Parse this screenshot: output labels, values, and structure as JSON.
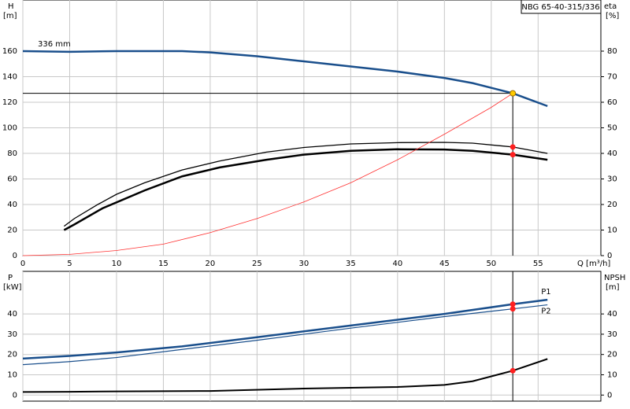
{
  "chart_data": [
    {
      "type": "line",
      "title": "NBG 65-40-315/336",
      "ylabel": "H",
      "yunit": "[m]",
      "y2label": "eta",
      "y2unit": "[%]",
      "xlabel": "Q [m³/h]",
      "xlim": [
        0,
        61.7
      ],
      "xticks": [
        0,
        5,
        10,
        15,
        20,
        25,
        30,
        35,
        40,
        45,
        50,
        55
      ],
      "ylim": [
        0,
        200
      ],
      "yticks": [
        0,
        20,
        40,
        60,
        80,
        100,
        120,
        140,
        160
      ],
      "y2lim": [
        0,
        100
      ],
      "y2ticks": [
        0,
        10,
        20,
        30,
        40,
        50,
        60,
        70,
        80
      ],
      "grid": true,
      "cursor_x": 52.3,
      "cursor_y": 127,
      "series": [
        {
          "name": "336 mm",
          "color": "#1a4f8c",
          "width": 2.5,
          "axis": "y",
          "x": [
            0,
            5,
            10,
            15,
            17,
            20,
            25,
            30,
            35,
            40,
            45,
            48,
            52.3,
            56
          ],
          "values": [
            160,
            159.5,
            160,
            160,
            160,
            159,
            156,
            152,
            148,
            144,
            139,
            135,
            127,
            117
          ]
        },
        {
          "color": "#000000",
          "width": 1.3,
          "axis": "y2",
          "x": [
            4.4,
            5.5,
            8,
            10,
            13,
            17,
            21,
            26,
            30,
            35,
            40,
            45,
            48,
            52.3,
            56
          ],
          "values": [
            11.5,
            14.5,
            20,
            24,
            28.5,
            33.5,
            37,
            40.5,
            42.3,
            43.7,
            44.2,
            44.3,
            44,
            42.5,
            40
          ]
        },
        {
          "color": "#000000",
          "width": 2.5,
          "axis": "y2",
          "x": [
            4.4,
            5.5,
            8.5,
            13,
            17,
            21,
            26,
            30,
            35,
            40,
            45,
            48,
            52.3,
            56
          ],
          "values": [
            10,
            12.2,
            18.5,
            25.5,
            31,
            34.5,
            37.5,
            39.5,
            41,
            41.6,
            41.5,
            41,
            39.5,
            37.5
          ]
        },
        {
          "color": "#ff3030",
          "width": 0.8,
          "axis": "y",
          "x": [
            0,
            5,
            10,
            15,
            20,
            25,
            30,
            35,
            40,
            45,
            50,
            52.3
          ],
          "values": [
            0,
            1,
            4,
            9,
            18,
            29,
            42,
            57,
            75,
            95,
            116,
            127
          ]
        }
      ],
      "points": [
        {
          "x": 52.3,
          "y": 127,
          "color": "#ffcc00",
          "axis": "y"
        },
        {
          "x": 52.3,
          "y": 42.5,
          "color": "#ff2020",
          "axis": "y2"
        },
        {
          "x": 52.3,
          "y": 39.5,
          "color": "#ff2020",
          "axis": "y2"
        }
      ]
    },
    {
      "type": "line",
      "ylabel": "P",
      "yunit": "[kW]",
      "y2label": "NPSH",
      "y2unit": "[m]",
      "xlim": [
        0,
        61.7
      ],
      "xticks": [
        0,
        5,
        10,
        15,
        20,
        25,
        30,
        35,
        40,
        45,
        50,
        55
      ],
      "ylim": [
        -3,
        61
      ],
      "yticks": [
        0,
        10,
        20,
        30,
        40
      ],
      "y2lim": [
        -3,
        61
      ],
      "y2ticks": [
        0,
        10,
        20,
        30,
        40
      ],
      "grid": true,
      "cursor_x": 52.3,
      "series": [
        {
          "name": "P1",
          "color": "#1a4f8c",
          "width": 2.5,
          "axis": "y",
          "x": [
            0,
            5,
            10,
            17,
            25,
            35,
            45,
            52.3,
            56
          ],
          "values": [
            18,
            19.3,
            21,
            24,
            28.5,
            34.3,
            40,
            44.8,
            47
          ]
        },
        {
          "name": "P2",
          "color": "#1a4f8c",
          "width": 1.2,
          "axis": "y",
          "x": [
            0,
            5,
            10,
            17,
            25,
            35,
            45,
            52.3,
            56
          ],
          "values": [
            15,
            16.5,
            18.5,
            22.5,
            27,
            33,
            38.7,
            42.5,
            44.5
          ]
        },
        {
          "color": "#000000",
          "width": 2,
          "axis": "y2",
          "x": [
            0,
            5,
            10,
            20,
            30,
            40,
            45,
            48,
            52.3,
            56
          ],
          "values": [
            1.5,
            1.6,
            1.8,
            2,
            3.2,
            4,
            5,
            6.8,
            12,
            17.8
          ]
        }
      ],
      "points": [
        {
          "x": 52.3,
          "y": 44.8,
          "color": "#ff2020",
          "axis": "y"
        },
        {
          "x": 52.3,
          "y": 42.5,
          "color": "#ff2020",
          "axis": "y"
        },
        {
          "x": 52.3,
          "y": 12,
          "color": "#ff2020",
          "axis": "y2"
        }
      ]
    }
  ]
}
